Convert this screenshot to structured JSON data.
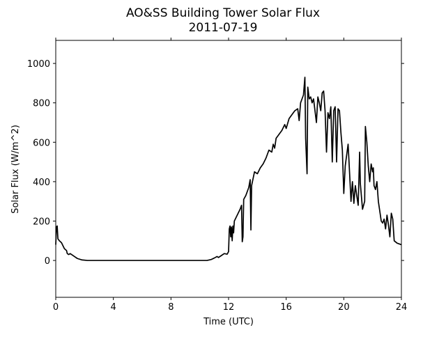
{
  "chart_data": {
    "type": "line",
    "title": "AO&SS Building Tower Solar Flux",
    "subtitle": "2011-07-19",
    "xlabel": "Time (UTC)",
    "ylabel": "Solar Flux (W/m^2)",
    "color": "#000000",
    "xlim": [
      0,
      24
    ],
    "xticks": [
      0,
      4,
      8,
      12,
      16,
      20,
      24
    ],
    "ylim": [
      -187,
      1117
    ],
    "yticks": [
      0,
      200,
      400,
      600,
      800,
      1000
    ],
    "x": [
      0,
      0.05,
      0.1,
      0.15,
      0.25,
      0.4,
      0.5,
      0.6,
      0.75,
      0.8,
      0.9,
      1.0,
      1.1,
      1.3,
      1.5,
      1.8,
      2.2,
      4,
      8,
      10.5,
      10.8,
      11.0,
      11.2,
      11.3,
      11.5,
      11.7,
      11.9,
      12.0,
      12.05,
      12.1,
      12.15,
      12.2,
      12.25,
      12.3,
      12.35,
      12.4,
      12.6,
      12.8,
      12.9,
      12.95,
      13.0,
      13.05,
      13.2,
      13.4,
      13.5,
      13.55,
      13.6,
      13.8,
      14.0,
      14.2,
      14.4,
      14.6,
      14.8,
      15.0,
      15.1,
      15.2,
      15.3,
      15.5,
      15.7,
      15.9,
      16.0,
      16.2,
      16.4,
      16.6,
      16.8,
      16.9,
      17.0,
      17.2,
      17.3,
      17.35,
      17.45,
      17.5,
      17.6,
      17.7,
      17.8,
      17.9,
      18.0,
      18.1,
      18.2,
      18.3,
      18.4,
      18.5,
      18.6,
      18.7,
      18.8,
      18.9,
      19.0,
      19.1,
      19.2,
      19.3,
      19.4,
      19.5,
      19.6,
      19.7,
      19.8,
      19.9,
      20.0,
      20.1,
      20.3,
      20.35,
      20.5,
      20.6,
      20.7,
      20.8,
      20.9,
      21.0,
      21.1,
      21.15,
      21.3,
      21.45,
      21.5,
      21.6,
      21.7,
      21.8,
      21.9,
      22.0,
      22.05,
      22.1,
      22.2,
      22.3,
      22.4,
      22.5,
      22.6,
      22.7,
      22.8,
      22.9,
      23.0,
      23.1,
      23.2,
      23.3,
      23.4,
      23.5,
      23.7,
      24
    ],
    "values": [
      80,
      170,
      175,
      110,
      100,
      90,
      75,
      60,
      50,
      35,
      30,
      35,
      30,
      20,
      10,
      3,
      0,
      0,
      0,
      0,
      5,
      12,
      20,
      15,
      25,
      35,
      32,
      45,
      160,
      175,
      120,
      170,
      100,
      175,
      140,
      200,
      230,
      260,
      280,
      95,
      120,
      310,
      330,
      370,
      410,
      155,
      380,
      450,
      440,
      470,
      490,
      520,
      560,
      550,
      590,
      570,
      620,
      640,
      660,
      690,
      670,
      720,
      740,
      760,
      770,
      710,
      800,
      840,
      930,
      620,
      440,
      880,
      820,
      830,
      800,
      820,
      760,
      700,
      830,
      800,
      760,
      850,
      860,
      760,
      550,
      750,
      720,
      780,
      500,
      760,
      780,
      500,
      770,
      760,
      650,
      560,
      340,
      480,
      590,
      520,
      300,
      400,
      290,
      380,
      330,
      280,
      550,
      390,
      260,
      300,
      680,
      600,
      480,
      400,
      490,
      450,
      470,
      380,
      360,
      400,
      300,
      250,
      200,
      190,
      210,
      160,
      230,
      180,
      120,
      240,
      210,
      100,
      88,
      80
    ]
  }
}
